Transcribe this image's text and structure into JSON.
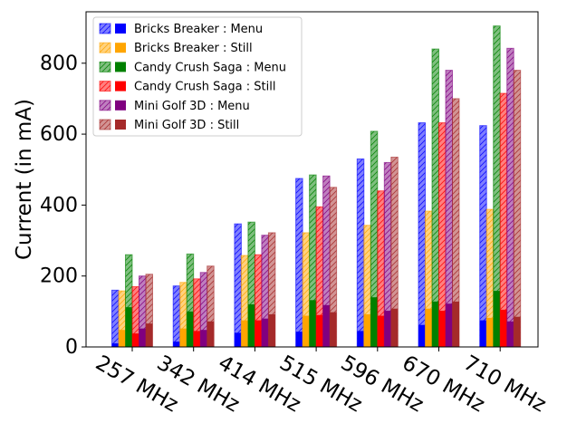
{
  "chart_data": {
    "type": "bar",
    "title": "",
    "xlabel": "",
    "ylabel": "Current (in mA)",
    "ylim": [
      0,
      945
    ],
    "yticks": [
      0,
      200,
      400,
      600,
      800
    ],
    "grid": false,
    "legend_position": "top-left",
    "categories": [
      "257 MHz",
      "342 MHz",
      "414 MHz",
      "515 MHz",
      "596 MHz",
      "670 MHz",
      "710 MHz"
    ],
    "series": [
      {
        "name": "Bricks Breaker : Menu",
        "color": "#0000ff",
        "hatched": [
          160,
          172,
          347,
          475,
          530,
          632,
          624
        ],
        "solid": [
          10,
          15,
          40,
          43,
          45,
          62,
          75
        ]
      },
      {
        "name": "Bricks Breaker : Still",
        "color": "#ffa500",
        "hatched": [
          158,
          182,
          258,
          322,
          343,
          383,
          388
        ],
        "solid": [
          48,
          52,
          75,
          88,
          92,
          108,
          82
        ]
      },
      {
        "name": "Candy Crush Saga : Menu",
        "color": "#008000",
        "hatched": [
          260,
          262,
          352,
          485,
          608,
          840,
          905
        ],
        "solid": [
          112,
          100,
          120,
          132,
          140,
          128,
          158
        ]
      },
      {
        "name": "Candy Crush Saga : Still",
        "color": "#ff0000",
        "hatched": [
          170,
          192,
          260,
          395,
          440,
          632,
          715
        ],
        "solid": [
          38,
          45,
          75,
          90,
          88,
          102,
          105
        ]
      },
      {
        "name": "Mini Golf 3D : Menu",
        "color": "#800080",
        "hatched": [
          200,
          210,
          315,
          482,
          520,
          780,
          842
        ],
        "solid": [
          52,
          48,
          80,
          118,
          102,
          122,
          72
        ]
      },
      {
        "name": "Mini Golf 3D : Still",
        "color": "#a52a2a",
        "hatched": [
          205,
          228,
          322,
          450,
          535,
          700,
          780
        ],
        "solid": [
          66,
          72,
          92,
          98,
          108,
          128,
          85
        ]
      }
    ]
  }
}
